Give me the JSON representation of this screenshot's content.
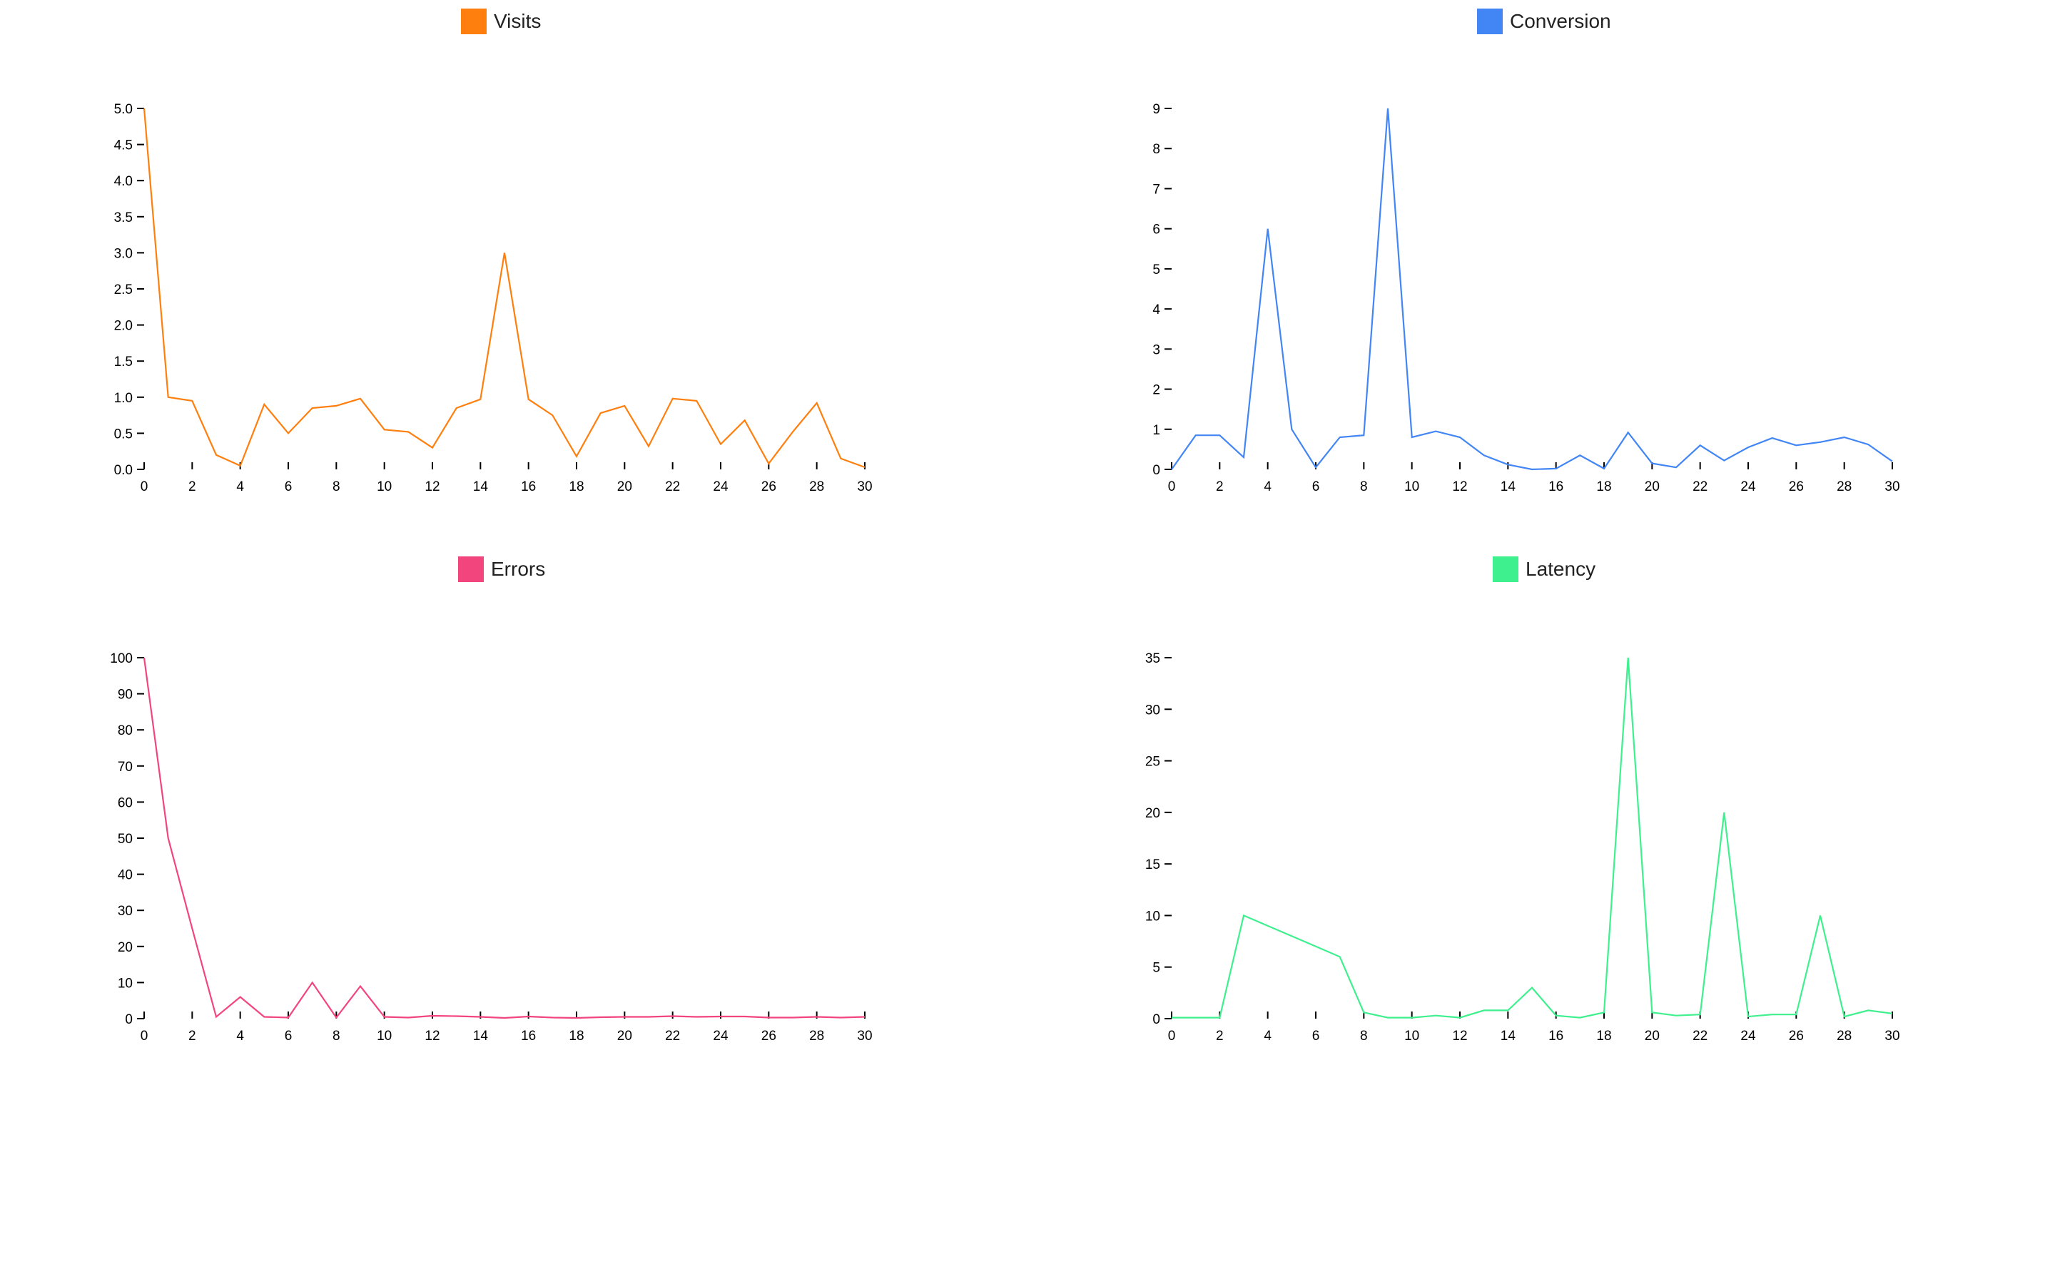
{
  "chart_data": [
    {
      "type": "line",
      "legend": "Visits",
      "color": "#ff7f0e",
      "x": [
        0,
        1,
        2,
        3,
        4,
        5,
        6,
        7,
        8,
        9,
        10,
        11,
        12,
        13,
        14,
        15,
        16,
        17,
        18,
        19,
        20,
        21,
        22,
        23,
        24,
        25,
        26,
        27,
        28,
        29,
        30
      ],
      "series": [
        {
          "name": "Visits",
          "values": [
            5.0,
            1.0,
            0.95,
            0.2,
            0.05,
            0.9,
            0.5,
            0.85,
            0.88,
            0.98,
            0.55,
            0.52,
            0.3,
            0.85,
            0.97,
            3.0,
            0.97,
            0.75,
            0.18,
            0.78,
            0.88,
            0.32,
            0.98,
            0.95,
            0.35,
            0.68,
            0.08,
            0.52,
            0.92,
            0.15,
            0.03
          ]
        }
      ],
      "xlim": [
        0,
        30
      ],
      "ylim": [
        0,
        5
      ],
      "xticks": [
        "0",
        "2",
        "4",
        "6",
        "8",
        "10",
        "12",
        "14",
        "16",
        "18",
        "20",
        "22",
        "24",
        "26",
        "28",
        "30"
      ],
      "yticks": [
        "0.0",
        "0.5",
        "1.0",
        "1.5",
        "2.0",
        "2.5",
        "3.0",
        "3.5",
        "4.0",
        "4.5",
        "5.0"
      ],
      "grid": false
    },
    {
      "type": "line",
      "legend": "Conversion",
      "color": "#4285f4",
      "x": [
        0,
        1,
        2,
        3,
        4,
        5,
        6,
        7,
        8,
        9,
        10,
        11,
        12,
        13,
        14,
        15,
        16,
        17,
        18,
        19,
        20,
        21,
        22,
        23,
        24,
        25,
        26,
        27,
        28,
        29,
        30
      ],
      "series": [
        {
          "name": "Conversion",
          "values": [
            0.0,
            0.85,
            0.85,
            0.3,
            6.0,
            1.0,
            0.05,
            0.8,
            0.85,
            9.0,
            0.8,
            0.95,
            0.8,
            0.35,
            0.12,
            0.0,
            0.02,
            0.35,
            0.02,
            0.92,
            0.15,
            0.05,
            0.6,
            0.22,
            0.55,
            0.78,
            0.6,
            0.68,
            0.8,
            0.62,
            0.2
          ]
        }
      ],
      "xlim": [
        0,
        30
      ],
      "ylim": [
        0,
        9
      ],
      "xticks": [
        "0",
        "2",
        "4",
        "6",
        "8",
        "10",
        "12",
        "14",
        "16",
        "18",
        "20",
        "22",
        "24",
        "26",
        "28",
        "30"
      ],
      "yticks": [
        "0",
        "1",
        "2",
        "3",
        "4",
        "5",
        "6",
        "7",
        "8",
        "9"
      ],
      "grid": false
    },
    {
      "type": "line",
      "legend": "Errors",
      "color": "#f2457e",
      "x": [
        0,
        1,
        2,
        3,
        4,
        5,
        6,
        7,
        8,
        9,
        10,
        11,
        12,
        13,
        14,
        15,
        16,
        17,
        18,
        19,
        20,
        21,
        22,
        23,
        24,
        25,
        26,
        27,
        28,
        29,
        30
      ],
      "series": [
        {
          "name": "Errors",
          "values": [
            100,
            50,
            25,
            0.5,
            6,
            0.5,
            0.3,
            10,
            0.3,
            9,
            0.5,
            0.3,
            0.8,
            0.7,
            0.5,
            0.2,
            0.6,
            0.3,
            0.2,
            0.4,
            0.5,
            0.5,
            0.7,
            0.5,
            0.6,
            0.6,
            0.3,
            0.3,
            0.5,
            0.3,
            0.5
          ]
        }
      ],
      "xlim": [
        0,
        30
      ],
      "ylim": [
        0,
        100
      ],
      "xticks": [
        "0",
        "2",
        "4",
        "6",
        "8",
        "10",
        "12",
        "14",
        "16",
        "18",
        "20",
        "22",
        "24",
        "26",
        "28",
        "30"
      ],
      "yticks": [
        "0",
        "10",
        "20",
        "30",
        "40",
        "50",
        "60",
        "70",
        "80",
        "90",
        "100"
      ],
      "grid": false
    },
    {
      "type": "line",
      "legend": "Latency",
      "color": "#3ef08e",
      "x": [
        0,
        1,
        2,
        3,
        4,
        5,
        6,
        7,
        8,
        9,
        10,
        11,
        12,
        13,
        14,
        15,
        16,
        17,
        18,
        19,
        20,
        21,
        22,
        23,
        24,
        25,
        26,
        27,
        28,
        29,
        30
      ],
      "series": [
        {
          "name": "Latency",
          "values": [
            0.1,
            0.1,
            0.1,
            10,
            9,
            8,
            7,
            6,
            0.6,
            0.1,
            0.1,
            0.3,
            0.1,
            0.8,
            0.8,
            3,
            0.3,
            0.1,
            0.6,
            35,
            0.6,
            0.3,
            0.4,
            20,
            0.2,
            0.4,
            0.4,
            10,
            0.2,
            0.8,
            0.5
          ]
        }
      ],
      "xlim": [
        0,
        30
      ],
      "ylim": [
        0,
        35
      ],
      "xticks": [
        "0",
        "2",
        "4",
        "6",
        "8",
        "10",
        "12",
        "14",
        "16",
        "18",
        "20",
        "22",
        "24",
        "26",
        "28",
        "30"
      ],
      "yticks": [
        "0",
        "5",
        "10",
        "15",
        "20",
        "25",
        "30",
        "35"
      ],
      "grid": false
    }
  ]
}
